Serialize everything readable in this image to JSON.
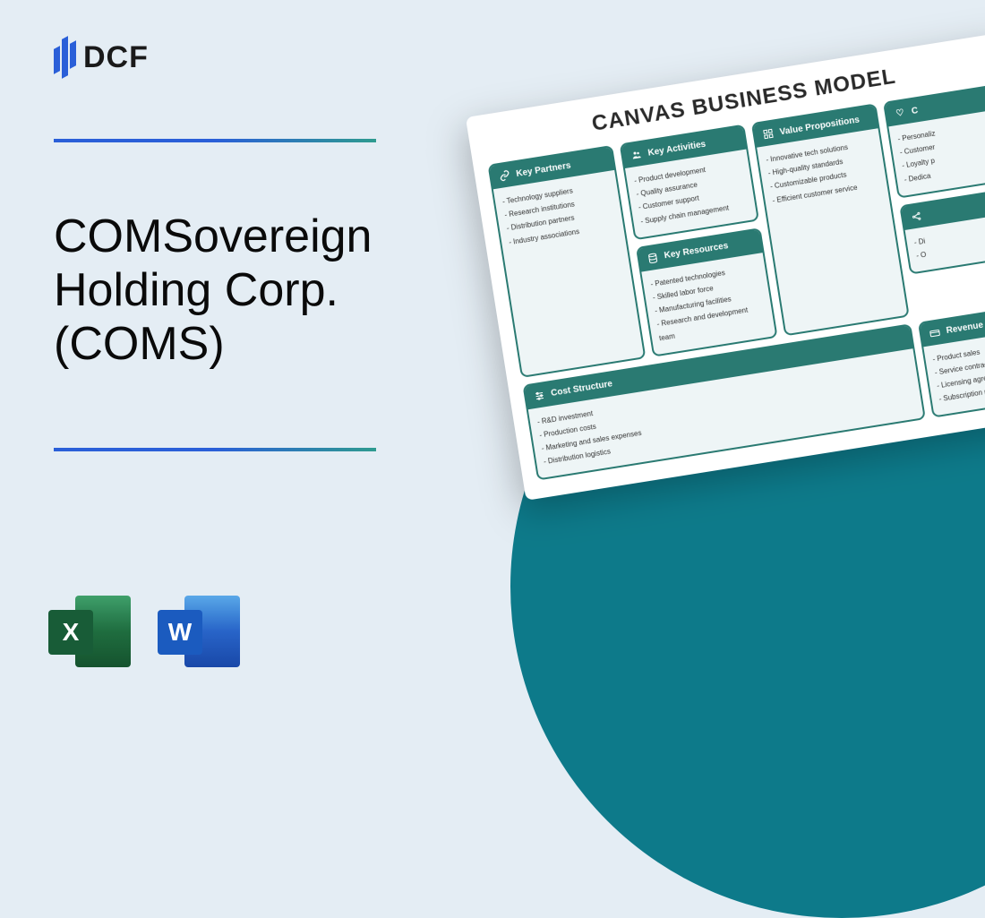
{
  "colors": {
    "page_bg": "#e4edf4",
    "circle": "#0d7a8a",
    "divider_gradient": [
      "#2a5fd8",
      "#2e9b8f"
    ],
    "canvas_block_border": "#2a7a72",
    "canvas_block_header": "#2a7a72",
    "canvas_block_bg": "#eef5f6",
    "title_color": "#0a0a0a",
    "excel_front": "#185c37",
    "word_front": "#1b5bbf"
  },
  "logo": {
    "text": "DCF"
  },
  "title": "COMSovereign Holding Corp. (COMS)",
  "file_icons": {
    "excel": {
      "letter": "X",
      "name": "excel-icon"
    },
    "word": {
      "letter": "W",
      "name": "word-icon"
    }
  },
  "canvas": {
    "title": "CANVAS BUSINESS MODEL",
    "blocks": {
      "key_partners": {
        "label": "Key Partners",
        "items": [
          "Technology suppliers",
          "Research institutions",
          "Distribution partners",
          "Industry associations"
        ]
      },
      "key_activities": {
        "label": "Key Activities",
        "items": [
          "Product development",
          "Quality assurance",
          "Customer support",
          "Supply chain management"
        ]
      },
      "key_resources": {
        "label": "Key Resources",
        "items": [
          "Patented technologies",
          "Skilled labor force",
          "Manufacturing facilities",
          "Research and development team"
        ]
      },
      "value_propositions": {
        "label": "Value Propositions",
        "items": [
          "Innovative tech solutions",
          "High-quality standards",
          "Customizable products",
          "Efficient customer service"
        ]
      },
      "customer_relationships": {
        "label": "C",
        "items": [
          "Personaliz",
          "Customer",
          "Loyalty p",
          "Dedica"
        ]
      },
      "channels": {
        "label": "",
        "items": [
          "Di",
          "O",
          "",
          ""
        ]
      },
      "cost_structure": {
        "label": "Cost Structure",
        "items": [
          "R&D investment",
          "Production costs",
          "Marketing and sales expenses",
          "Distribution logistics"
        ]
      },
      "revenue_streams": {
        "label": "Revenue S",
        "items": [
          "Product sales",
          "Service contracts",
          "Licensing agreem",
          "Subscription mo"
        ]
      }
    }
  }
}
